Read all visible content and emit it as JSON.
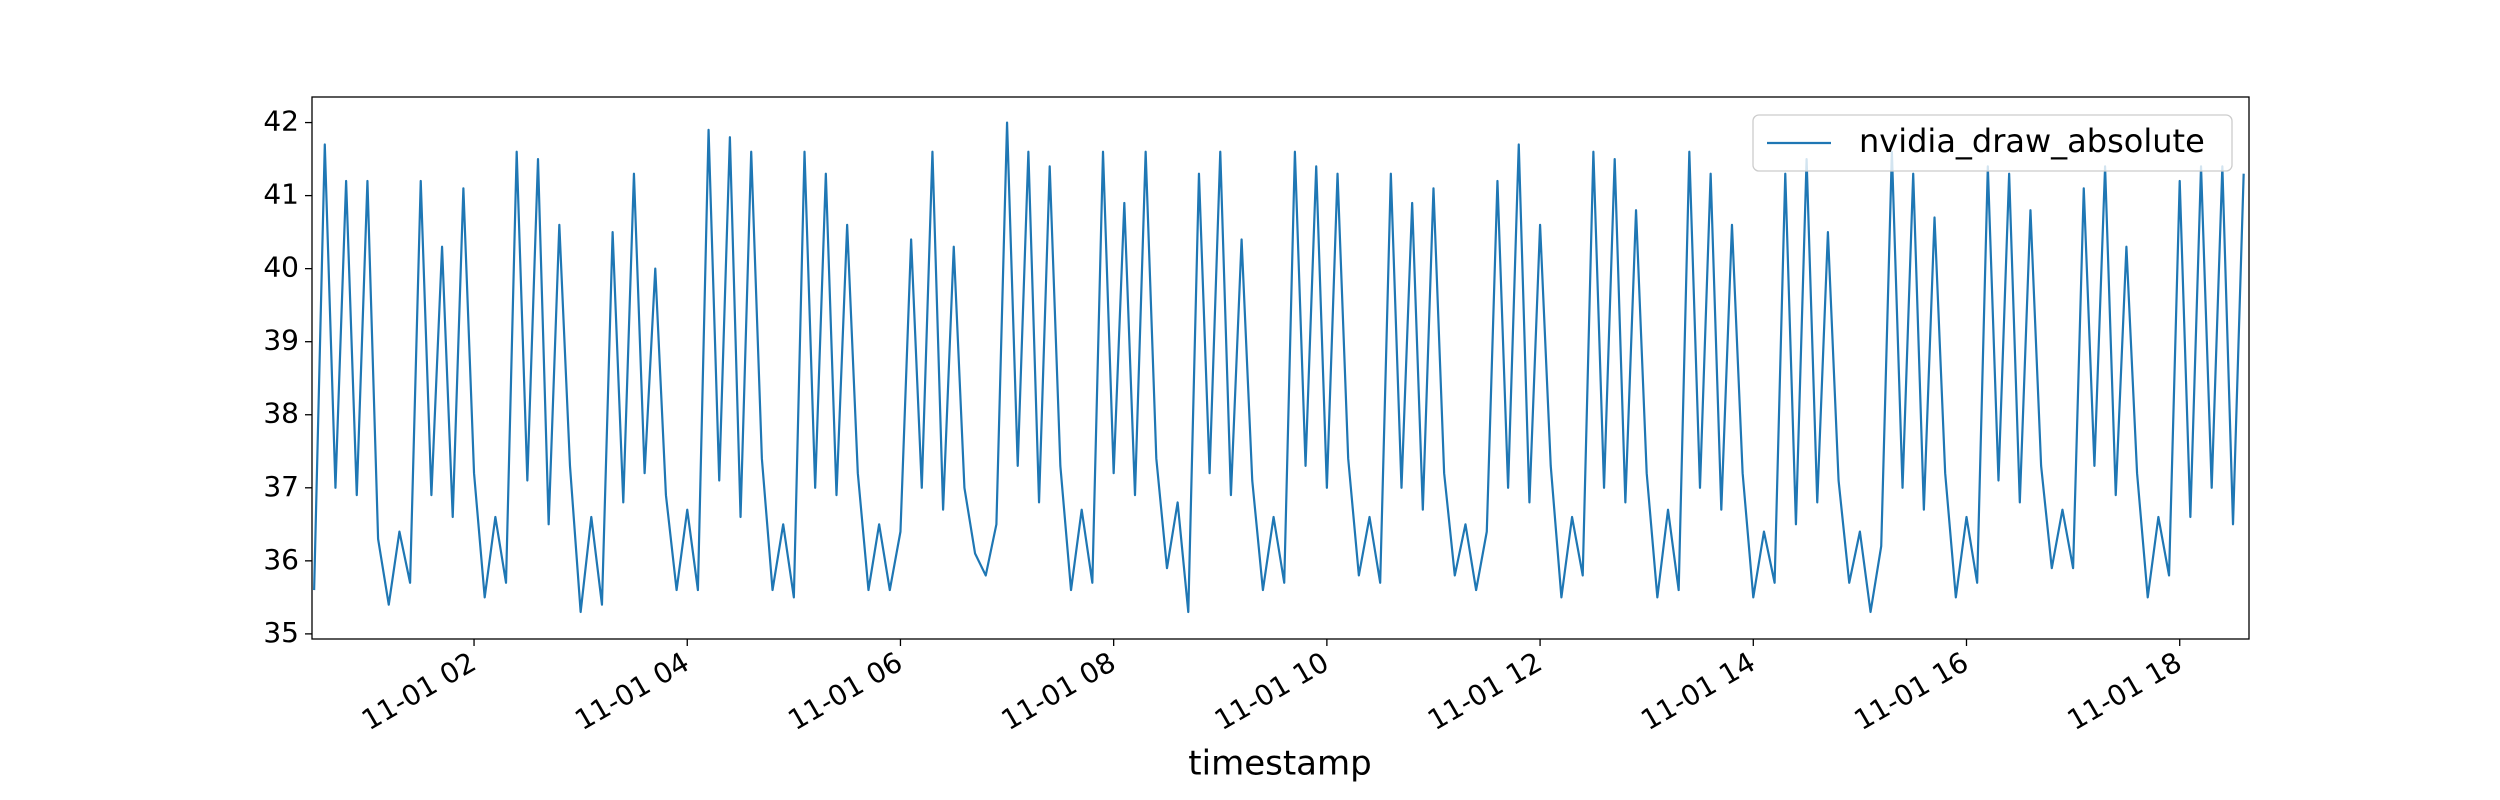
{
  "chart_data": {
    "type": "line",
    "xlabel": "timestamp",
    "x": [
      0.5,
      0.6,
      0.7,
      0.8,
      0.9,
      1.0,
      1.1,
      1.2,
      1.3,
      1.4,
      1.5,
      1.6,
      1.7,
      1.8,
      1.9,
      2.0,
      2.1,
      2.2,
      2.3,
      2.4,
      2.5,
      2.6,
      2.7,
      2.8,
      2.9,
      3.0,
      3.1,
      3.2,
      3.3,
      3.4,
      3.5,
      3.6,
      3.7,
      3.8,
      3.9,
      4.0,
      4.1,
      4.2,
      4.3,
      4.4,
      4.5,
      4.6,
      4.7,
      4.8,
      4.9,
      5.0,
      5.1,
      5.2,
      5.3,
      5.4,
      5.5,
      5.6,
      5.7,
      5.8,
      5.9,
      6.0,
      6.1,
      6.2,
      6.3,
      6.4,
      6.5,
      6.6,
      6.7,
      6.8,
      6.9,
      7.0,
      7.1,
      7.2,
      7.3,
      7.4,
      7.5,
      7.6,
      7.7,
      7.8,
      7.9,
      8.0,
      8.1,
      8.2,
      8.3,
      8.4,
      8.5,
      8.6,
      8.7,
      8.8,
      8.9,
      9.0,
      9.1,
      9.2,
      9.3,
      9.4,
      9.5,
      9.6,
      9.7,
      9.8,
      9.9,
      10.0,
      10.1,
      10.2,
      10.3,
      10.4,
      10.5,
      10.6,
      10.7,
      10.8,
      10.9,
      11.0,
      11.1,
      11.2,
      11.3,
      11.4,
      11.5,
      11.6,
      11.7,
      11.8,
      11.9,
      12.0,
      12.1,
      12.2,
      12.3,
      12.4,
      12.5,
      12.6,
      12.7,
      12.8,
      12.9,
      13.0,
      13.1,
      13.2,
      13.3,
      13.4,
      13.5,
      13.6,
      13.7,
      13.8,
      13.9,
      14.0,
      14.1,
      14.2,
      14.3,
      14.4,
      14.5,
      14.6,
      14.7,
      14.8,
      14.9,
      15.0,
      15.1,
      15.2,
      15.3,
      15.4,
      15.5,
      15.6,
      15.7,
      15.8,
      15.9,
      16.0,
      16.1,
      16.2,
      16.3,
      16.4,
      16.5,
      16.6,
      16.7,
      16.8,
      16.9,
      17.0,
      17.1,
      17.2,
      17.3,
      17.4,
      17.5,
      17.6,
      17.7,
      17.8,
      17.9,
      18.0,
      18.1,
      18.2,
      18.3,
      18.4,
      18.5,
      18.6
    ],
    "series": [
      {
        "name": "nvidia_draw_absolute",
        "color": "#1f77b4",
        "values": [
          35.6,
          41.7,
          37.0,
          41.2,
          36.9,
          41.2,
          36.3,
          35.4,
          36.4,
          35.7,
          41.2,
          36.9,
          40.3,
          36.6,
          41.1,
          37.2,
          35.5,
          36.6,
          35.7,
          41.6,
          37.1,
          41.5,
          36.5,
          40.6,
          37.3,
          35.3,
          36.6,
          35.4,
          40.5,
          36.8,
          41.3,
          37.2,
          40.0,
          36.9,
          35.6,
          36.7,
          35.6,
          41.9,
          37.1,
          41.8,
          36.6,
          41.6,
          37.4,
          35.6,
          36.5,
          35.5,
          41.6,
          37.0,
          41.3,
          36.9,
          40.6,
          37.2,
          35.6,
          36.5,
          35.6,
          36.4,
          40.4,
          37.0,
          41.6,
          36.7,
          40.3,
          37.0,
          36.1,
          35.8,
          36.5,
          42.0,
          37.3,
          41.6,
          36.8,
          41.4,
          37.3,
          35.6,
          36.7,
          35.7,
          41.6,
          37.2,
          40.9,
          36.9,
          41.6,
          37.4,
          35.9,
          36.8,
          35.3,
          41.3,
          37.2,
          41.6,
          36.9,
          40.4,
          37.1,
          35.6,
          36.6,
          35.7,
          41.6,
          37.3,
          41.4,
          37.0,
          41.3,
          37.4,
          35.8,
          36.6,
          35.7,
          41.3,
          37.0,
          40.9,
          36.7,
          41.1,
          37.2,
          35.8,
          36.5,
          35.6,
          36.4,
          41.2,
          37.0,
          41.7,
          36.8,
          40.6,
          37.3,
          35.5,
          36.6,
          35.8,
          41.6,
          37.0,
          41.5,
          36.8,
          40.8,
          37.2,
          35.5,
          36.7,
          35.6,
          41.6,
          37.0,
          41.3,
          36.7,
          40.6,
          37.2,
          35.5,
          36.4,
          35.7,
          41.3,
          36.5,
          41.5,
          36.8,
          40.5,
          37.1,
          35.7,
          36.4,
          35.3,
          36.2,
          41.6,
          37.0,
          41.3,
          36.7,
          40.7,
          37.2,
          35.5,
          36.6,
          35.7,
          41.4,
          37.1,
          41.3,
          36.8,
          40.8,
          37.3,
          35.9,
          36.7,
          35.9,
          41.1,
          37.3,
          41.4,
          36.9,
          40.3,
          37.2,
          35.5,
          36.6,
          35.8,
          41.2,
          36.6,
          41.4,
          37.0,
          41.4,
          36.5,
          41.3
        ]
      }
    ],
    "xlim": [
      0.48,
      18.65
    ],
    "ylim": [
      34.93,
      42.35
    ],
    "xticks": [
      {
        "value": 2,
        "label": "11-01 02"
      },
      {
        "value": 4,
        "label": "11-01 04"
      },
      {
        "value": 6,
        "label": "11-01 06"
      },
      {
        "value": 8,
        "label": "11-01 08"
      },
      {
        "value": 10,
        "label": "11-01 10"
      },
      {
        "value": 12,
        "label": "11-01 12"
      },
      {
        "value": 14,
        "label": "11-01 14"
      },
      {
        "value": 16,
        "label": "11-01 16"
      },
      {
        "value": 18,
        "label": "11-01 18"
      }
    ],
    "yticks": [
      35,
      36,
      37,
      38,
      39,
      40,
      41,
      42
    ],
    "legend": "upper right"
  }
}
